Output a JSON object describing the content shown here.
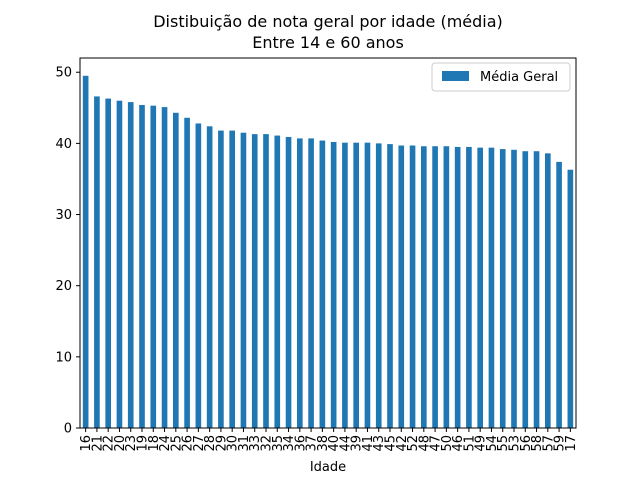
{
  "chart_data": {
    "type": "bar",
    "title": "Distibuição de nota geral por idade (média)",
    "subtitle": "Entre 14 e 60 anos",
    "xlabel": "Idade",
    "ylabel": "",
    "ylim": [
      0,
      52
    ],
    "yticks": [
      0,
      10,
      20,
      30,
      40,
      50
    ],
    "grid": false,
    "legend_position": "top-right",
    "categories": [
      "16",
      "21",
      "22",
      "20",
      "23",
      "19",
      "18",
      "24",
      "25",
      "26",
      "27",
      "28",
      "29",
      "30",
      "31",
      "33",
      "32",
      "35",
      "34",
      "36",
      "37",
      "38",
      "40",
      "44",
      "39",
      "41",
      "43",
      "45",
      "42",
      "52",
      "48",
      "47",
      "50",
      "46",
      "51",
      "49",
      "54",
      "55",
      "53",
      "56",
      "58",
      "57",
      "59",
      "17"
    ],
    "series": [
      {
        "name": "Média Geral",
        "color": "#1f77b4",
        "values": [
          49.5,
          46.6,
          46.3,
          46.0,
          45.8,
          45.4,
          45.3,
          45.1,
          44.3,
          43.6,
          42.8,
          42.4,
          41.8,
          41.8,
          41.5,
          41.3,
          41.3,
          41.1,
          40.9,
          40.7,
          40.7,
          40.4,
          40.2,
          40.1,
          40.1,
          40.1,
          40.0,
          39.9,
          39.7,
          39.7,
          39.6,
          39.6,
          39.6,
          39.5,
          39.5,
          39.4,
          39.4,
          39.2,
          39.1,
          38.9,
          38.9,
          38.6,
          37.4,
          36.3
        ]
      }
    ]
  }
}
